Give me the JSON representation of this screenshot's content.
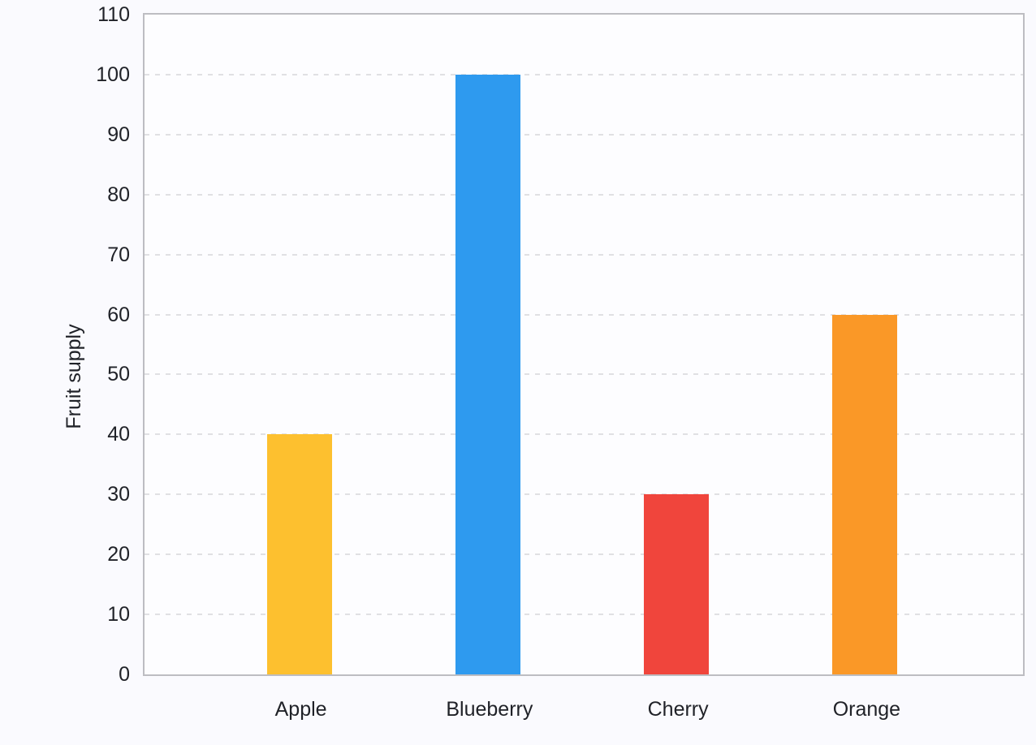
{
  "chart_data": {
    "type": "bar",
    "categories": [
      "Apple",
      "Blueberry",
      "Cherry",
      "Orange"
    ],
    "values": [
      40,
      100,
      30,
      60
    ],
    "bar_colors": [
      "#FDC02F",
      "#2E9AEF",
      "#F0453C",
      "#FA9827"
    ],
    "title": "",
    "xlabel": "",
    "ylabel": "Fruit supply",
    "ylim": [
      0,
      110
    ],
    "yticks": [
      0,
      10,
      20,
      30,
      40,
      50,
      60,
      70,
      80,
      90,
      100,
      110
    ],
    "grid": "horizontal-dashed",
    "legend": "none"
  },
  "colors": {
    "background": "#FAFAFE",
    "plot_background": "#FDFDFF",
    "grid_line": "#E0E0E3",
    "axis_border": "#BDBDC2",
    "text": "#202228"
  }
}
